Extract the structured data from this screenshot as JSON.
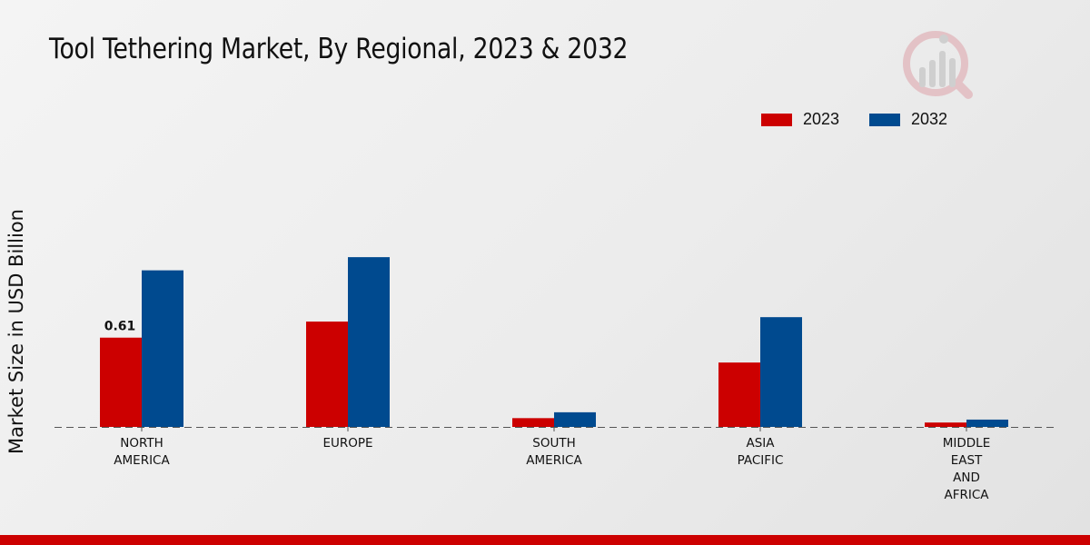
{
  "chart_data": {
    "type": "bar",
    "title": "Tool Tethering Market, By Regional, 2023 & 2032",
    "xlabel": "",
    "ylabel": "Market Size in USD Billion",
    "categories": [
      [
        "NORTH",
        "AMERICA"
      ],
      [
        "EUROPE"
      ],
      [
        "SOUTH",
        "AMERICA"
      ],
      [
        "ASIA",
        "PACIFIC"
      ],
      [
        "MIDDLE",
        "EAST",
        "AND",
        "AFRICA"
      ]
    ],
    "series": [
      {
        "name": "2023",
        "color": "#cc0000",
        "values": [
          0.61,
          0.72,
          0.06,
          0.44,
          0.03
        ]
      },
      {
        "name": "2032",
        "color": "#004a8f",
        "values": [
          1.07,
          1.16,
          0.1,
          0.75,
          0.05
        ]
      }
    ],
    "data_labels": [
      {
        "series": 0,
        "index": 0,
        "text": "0.61"
      }
    ],
    "ylim": [
      0,
      1.8
    ],
    "grid": false,
    "legend_position": "top-right"
  }
}
